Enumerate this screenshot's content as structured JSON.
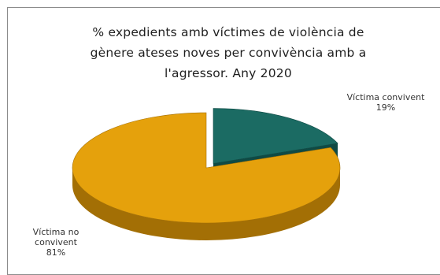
{
  "chart_data": {
    "type": "pie",
    "title_lines": [
      "% expedients amb víctimes de violència de",
      "gènere ateses noves per convivència amb a",
      "l'agressor. Any 2020"
    ],
    "slices": [
      {
        "name": "Víctima convivent",
        "value": 19,
        "value_label": "19%",
        "color": "#1b6b63",
        "side_color": "#0f4a44"
      },
      {
        "name_lines": [
          "Víctima no",
          "convivent"
        ],
        "name": "Víctima no convivent",
        "value": 81,
        "value_label": "81%",
        "color": "#e5a10c",
        "side_color": "#a36f05"
      }
    ],
    "style": "3d-exploded"
  }
}
